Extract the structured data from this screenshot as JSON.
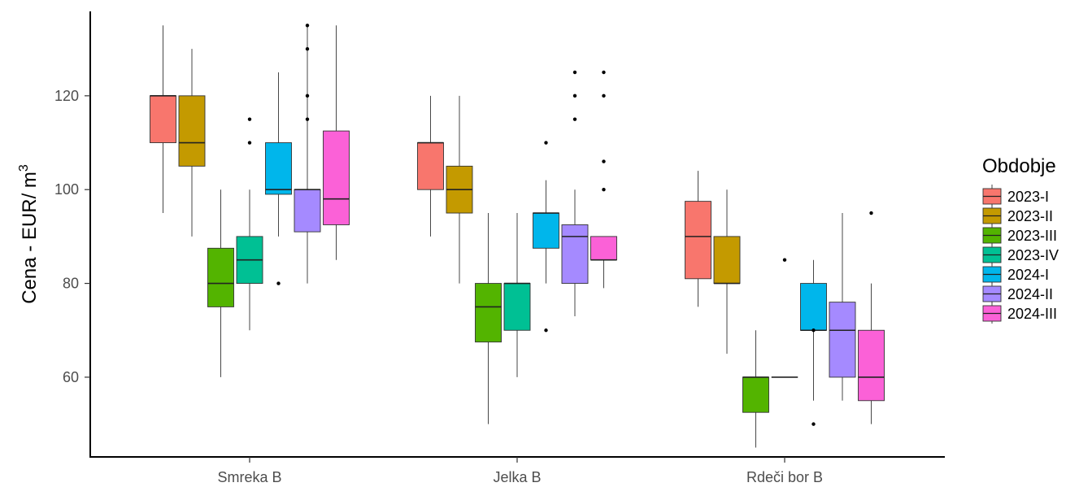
{
  "chart_data": {
    "type": "boxplot",
    "title": "",
    "xlabel": "",
    "ylabel": "Cena - EUR/ m",
    "ylabel_superscript": "3",
    "ylim": [
      43,
      138
    ],
    "yticks": [
      60,
      80,
      100,
      120
    ],
    "grid": false,
    "legend_position": "right",
    "legend_title": "Obdobje",
    "categories": [
      "Smreka B",
      "Jelka B",
      "Rdeči bor B"
    ],
    "series": [
      {
        "name": "2023-I",
        "color": "#F8766D",
        "boxes": [
          {
            "category": "Smreka B",
            "min": 95,
            "q1": 110,
            "median": 120,
            "q3": 120,
            "max": 135,
            "outliers": []
          },
          {
            "category": "Jelka B",
            "min": 90,
            "q1": 100,
            "median": 110,
            "q3": 110,
            "max": 120,
            "outliers": []
          },
          {
            "category": "Rdeči bor B",
            "min": 75,
            "q1": 81,
            "median": 90,
            "q3": 97.5,
            "max": 104,
            "outliers": []
          }
        ]
      },
      {
        "name": "2023-II",
        "color": "#C49A00",
        "boxes": [
          {
            "category": "Smreka B",
            "min": 90,
            "q1": 105,
            "median": 110,
            "q3": 120,
            "max": 130,
            "outliers": []
          },
          {
            "category": "Jelka B",
            "min": 80,
            "q1": 95,
            "median": 100,
            "q3": 105,
            "max": 120,
            "outliers": []
          },
          {
            "category": "Rdeči bor B",
            "min": 65,
            "q1": 80,
            "median": 80,
            "q3": 90,
            "max": 100,
            "outliers": []
          }
        ]
      },
      {
        "name": "2023-III",
        "color": "#53B400",
        "boxes": [
          {
            "category": "Smreka B",
            "min": 60,
            "q1": 75,
            "median": 80,
            "q3": 87.5,
            "max": 100,
            "outliers": []
          },
          {
            "category": "Jelka B",
            "min": 50,
            "q1": 67.5,
            "median": 75,
            "q3": 80,
            "max": 95,
            "outliers": []
          },
          {
            "category": "Rdeči bor B",
            "min": 45,
            "q1": 52.5,
            "median": 60,
            "q3": 60,
            "max": 70,
            "outliers": []
          }
        ]
      },
      {
        "name": "2023-IV",
        "color": "#00C094",
        "boxes": [
          {
            "category": "Smreka B",
            "min": 70,
            "q1": 80,
            "median": 85,
            "q3": 90,
            "max": 100,
            "outliers": [
              110,
              115
            ]
          },
          {
            "category": "Jelka B",
            "min": 60,
            "q1": 70,
            "median": 80,
            "q3": 80,
            "max": 95,
            "outliers": []
          },
          {
            "category": "Rdeči bor B",
            "min": 60,
            "q1": 60,
            "median": 60,
            "q3": 60,
            "max": 60,
            "outliers": [
              85
            ]
          }
        ]
      },
      {
        "name": "2024-I",
        "color": "#00B6EB",
        "boxes": [
          {
            "category": "Smreka B",
            "min": 90,
            "q1": 99,
            "median": 100,
            "q3": 110,
            "max": 125,
            "outliers": [
              80
            ]
          },
          {
            "category": "Jelka B",
            "min": 80,
            "q1": 87.5,
            "median": 95,
            "q3": 95,
            "max": 102,
            "outliers": [
              70,
              110
            ]
          },
          {
            "category": "Rdeči bor B",
            "min": 55,
            "q1": 70,
            "median": 70,
            "q3": 80,
            "max": 85,
            "outliers": [
              50,
              70
            ]
          }
        ]
      },
      {
        "name": "2024-II",
        "color": "#A58AFF",
        "boxes": [
          {
            "category": "Smreka B",
            "min": 80,
            "q1": 91,
            "median": 100,
            "q3": 100,
            "max": 135,
            "outliers": [
              115,
              120,
              130,
              135
            ]
          },
          {
            "category": "Jelka B",
            "min": 73,
            "q1": 80,
            "median": 90,
            "q3": 92.5,
            "max": 100,
            "outliers": [
              115,
              120,
              125
            ]
          },
          {
            "category": "Rdeči bor B",
            "min": 55,
            "q1": 60,
            "median": 70,
            "q3": 76,
            "max": 95,
            "outliers": []
          }
        ]
      },
      {
        "name": "2024-III",
        "color": "#FB61D7",
        "boxes": [
          {
            "category": "Smreka B",
            "min": 85,
            "q1": 92.5,
            "median": 98,
            "q3": 112.5,
            "max": 135,
            "outliers": []
          },
          {
            "category": "Jelka B",
            "min": 79,
            "q1": 85,
            "median": 85,
            "q3": 90,
            "max": 90,
            "outliers": [
              100,
              106,
              120,
              125
            ]
          },
          {
            "category": "Rdeči bor B",
            "min": 50,
            "q1": 55,
            "median": 60,
            "q3": 70,
            "max": 80,
            "outliers": [
              95
            ]
          }
        ]
      }
    ]
  }
}
